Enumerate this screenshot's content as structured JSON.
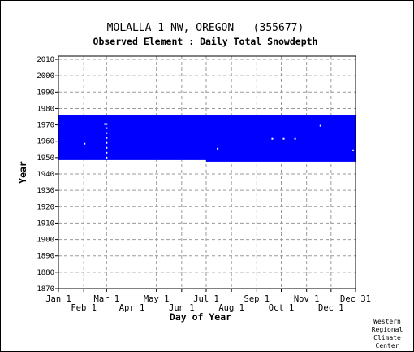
{
  "chart_data": {
    "type": "heatmap",
    "title": "MOLALLA 1 NW, OREGON   (355677)",
    "subtitle": "Observed Element : Daily Total Snowdepth",
    "xlabel": "Day of Year",
    "ylabel": "Year",
    "x_range_day_of_year": [
      1,
      365
    ],
    "ylim": [
      1870,
      2012
    ],
    "x_ticks_upper": [
      {
        "label": "Jan 1",
        "day": 1
      },
      {
        "label": "Mar 1",
        "day": 60
      },
      {
        "label": "May 1",
        "day": 121
      },
      {
        "label": "Jul 1",
        "day": 182
      },
      {
        "label": "Sep 1",
        "day": 244
      },
      {
        "label": "Nov 1",
        "day": 305
      },
      {
        "label": "Dec 31",
        "day": 365
      }
    ],
    "x_ticks_lower": [
      {
        "label": "Feb 1",
        "day": 32
      },
      {
        "label": "Apr 1",
        "day": 91
      },
      {
        "label": "Jun 1",
        "day": 152
      },
      {
        "label": "Aug 1",
        "day": 213
      },
      {
        "label": "Oct 1",
        "day": 274
      },
      {
        "label": "Dec 1",
        "day": 335
      }
    ],
    "y_ticks": [
      1870,
      1880,
      1890,
      1900,
      1910,
      1920,
      1930,
      1940,
      1950,
      1960,
      1970,
      1980,
      1990,
      2000,
      2010
    ],
    "grid": true,
    "data_color": "#0000ff",
    "period_of_record": [
      {
        "from_year": 1948.5,
        "to_year": 1976,
        "from_day": 1,
        "to_day": 182
      },
      {
        "from_year": 1947.5,
        "to_year": 1976,
        "from_day": 182,
        "to_day": 365
      }
    ],
    "missing_points": [
      {
        "day": 33,
        "year": 1958.5
      },
      {
        "day": 58,
        "year": 1970.5
      },
      {
        "day": 60,
        "year": 1970.5
      },
      {
        "day": 60,
        "year": 1968
      },
      {
        "day": 60,
        "year": 1965
      },
      {
        "day": 60,
        "year": 1962
      },
      {
        "day": 60,
        "year": 1959
      },
      {
        "day": 60,
        "year": 1956
      },
      {
        "day": 60,
        "year": 1953
      },
      {
        "day": 60,
        "year": 1950
      },
      {
        "day": 196,
        "year": 1955.5
      },
      {
        "day": 263,
        "year": 1961.5
      },
      {
        "day": 277,
        "year": 1961.5
      },
      {
        "day": 291,
        "year": 1961.5
      },
      {
        "day": 322,
        "year": 1969.5
      },
      {
        "day": 362,
        "year": 1954.5
      }
    ]
  },
  "footer": {
    "credit_lines": [
      "Western",
      "Regional",
      "Climate",
      "Center"
    ]
  }
}
